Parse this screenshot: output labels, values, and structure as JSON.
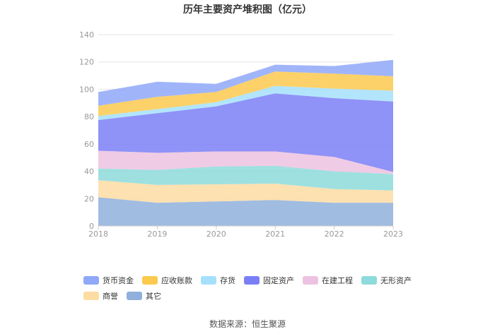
{
  "chart_data": {
    "type": "area",
    "stacked": true,
    "title": "历年主要资产堆积图（亿元）",
    "xlabel": "",
    "ylabel": "",
    "categories": [
      "2018",
      "2019",
      "2020",
      "2021",
      "2022",
      "2023"
    ],
    "ylim": [
      0,
      140
    ],
    "yticks": [
      0,
      20,
      40,
      60,
      80,
      100,
      120,
      140
    ],
    "grid": true,
    "legend_position": "bottom",
    "series": [
      {
        "name": "其它",
        "color": "#8fb0dc",
        "values": [
          21,
          17,
          18,
          19,
          17,
          17
        ]
      },
      {
        "name": "商誉",
        "color": "#fddca3",
        "values": [
          12.5,
          13,
          12.5,
          12,
          10,
          9
        ]
      },
      {
        "name": "无形资产",
        "color": "#8ddbdb",
        "values": [
          8.5,
          11,
          13,
          13,
          13,
          12
        ]
      },
      {
        "name": "在建工程",
        "color": "#edc2e0",
        "values": [
          13,
          12.5,
          11,
          10.5,
          10.5,
          1.5
        ]
      },
      {
        "name": "固定资产",
        "color": "#7b7ff6",
        "values": [
          22.5,
          29,
          33,
          42.5,
          43,
          51.5
        ]
      },
      {
        "name": "存货",
        "color": "#a5e0fb",
        "values": [
          3,
          3,
          3,
          5.5,
          7,
          8
        ]
      },
      {
        "name": "应收账款",
        "color": "#fcc94f",
        "values": [
          7.5,
          9,
          7.5,
          10.5,
          11,
          10.5
        ]
      },
      {
        "name": "货币资金",
        "color": "#8fa8f8",
        "values": [
          10,
          11,
          6,
          5,
          5.5,
          12
        ]
      }
    ]
  },
  "legend_order": [
    "货币资金",
    "应收账款",
    "存货",
    "固定资产",
    "在建工程",
    "无形资产",
    "商誉",
    "其它"
  ],
  "source": "数据来源：恒生聚源"
}
